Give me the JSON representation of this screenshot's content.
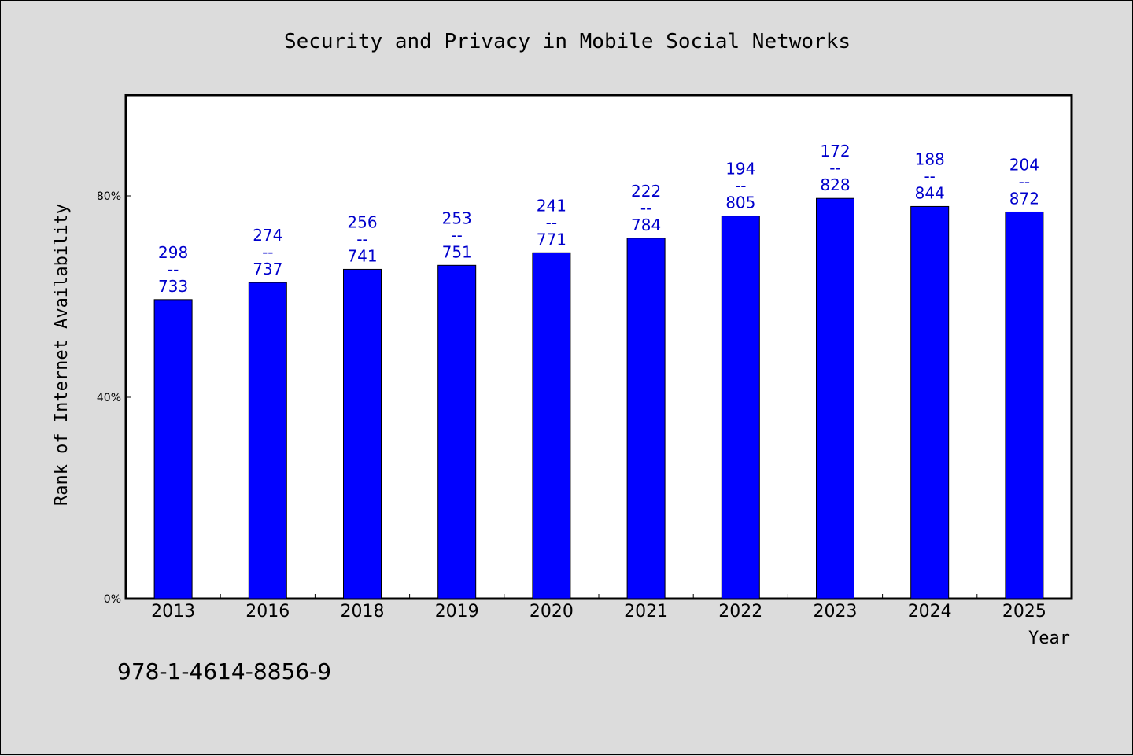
{
  "chart_data": {
    "type": "bar",
    "title": "Security and Privacy in Mobile Social Networks",
    "xlabel": "Year",
    "ylabel": "Rank of Internet Availability",
    "categories": [
      "2013",
      "2016",
      "2018",
      "2019",
      "2020",
      "2021",
      "2022",
      "2023",
      "2024",
      "2025"
    ],
    "values": [
      59.4,
      62.8,
      65.4,
      66.2,
      68.7,
      71.6,
      76.0,
      79.5,
      77.9,
      76.8
    ],
    "data_labels": [
      [
        "298",
        "--",
        "733"
      ],
      [
        "274",
        "--",
        "737"
      ],
      [
        "256",
        "--",
        "741"
      ],
      [
        "253",
        "--",
        "751"
      ],
      [
        "241",
        "--",
        "771"
      ],
      [
        "222",
        "--",
        "784"
      ],
      [
        "194",
        "--",
        "805"
      ],
      [
        "172",
        "--",
        "828"
      ],
      [
        "188",
        "--",
        "844"
      ],
      [
        "204",
        "--",
        "872"
      ]
    ],
    "yticks": [
      0,
      40,
      80
    ],
    "ytick_labels": [
      "0%",
      "40%",
      "80%"
    ],
    "ylim": [
      0,
      100
    ],
    "grid": false,
    "bar_color": "#0000ff",
    "label_color": "#0000cc",
    "plot_background": "#ffffff",
    "page_background": "#dcdcdc"
  },
  "footnote": "978-1-4614-8856-9"
}
